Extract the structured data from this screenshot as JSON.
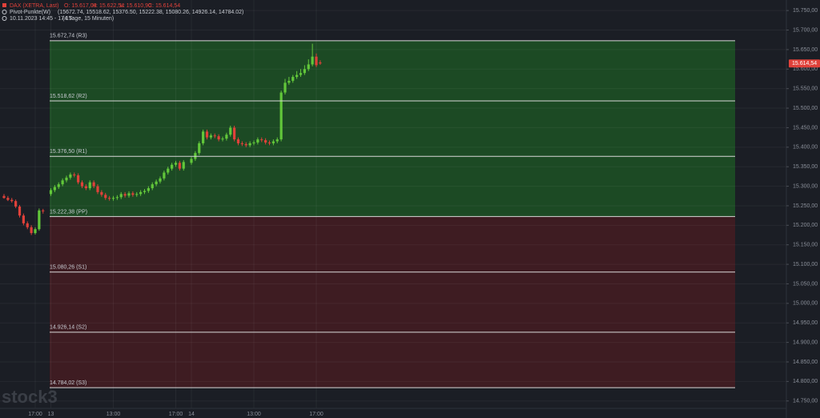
{
  "chart_data": {
    "type": "candlestick",
    "header": {
      "symbol": "DAX (XETRA, Last)",
      "ohlc": [
        "O: 15.617,08",
        "H: 15.622,54",
        "L: 15.610,90",
        "C: 15.614,54"
      ],
      "indicator": "Pivot-Punkte(W)",
      "indicator_values": "(15672.74, 15518.62, 15376.50, 15222.38, 15080.26, 14926.14, 14784.02)",
      "range": "10.11.2023 14:45 - 17:15",
      "period": "(4 Tage, 15 Minuten)"
    },
    "watermark": "stock3",
    "categories": [
      null,
      null,
      null,
      null,
      null,
      null,
      null,
      null,
      "17:00",
      null,
      null,
      null,
      "13",
      null,
      null,
      null,
      null,
      null,
      null,
      null,
      null,
      null,
      null,
      null,
      null,
      null,
      null,
      null,
      "13:00",
      null,
      null,
      null,
      null,
      null,
      null,
      null,
      null,
      null,
      null,
      null,
      null,
      null,
      null,
      null,
      "17:00",
      null,
      null,
      null,
      "14",
      null,
      null,
      null,
      null,
      null,
      null,
      null,
      null,
      null,
      null,
      null,
      null,
      null,
      null,
      null,
      "13:00",
      null,
      null,
      null,
      null,
      null,
      null,
      null,
      null,
      null,
      null,
      null,
      null,
      null,
      null,
      null,
      "17:00",
      null
    ],
    "open": [
      15275,
      15270,
      15265,
      15262,
      15248,
      15225,
      15205,
      15195,
      15180,
      15190,
      15238,
      null,
      15280,
      15290,
      15298,
      15305,
      15315,
      15322,
      15330,
      15328,
      15310,
      15300,
      15295,
      15310,
      15300,
      15285,
      15278,
      15270,
      15268,
      15270,
      15272,
      15280,
      15276,
      15282,
      15278,
      15280,
      15285,
      15288,
      15295,
      15305,
      15312,
      15320,
      15335,
      15345,
      15355,
      15360,
      15345,
      null,
      15360,
      15370,
      15385,
      15410,
      15440,
      15425,
      15430,
      15428,
      15420,
      15422,
      15432,
      15450,
      15420,
      15410,
      15408,
      15405,
      15410,
      15412,
      15420,
      15418,
      15412,
      15410,
      15415,
      15420,
      15540,
      15565,
      15570,
      15580,
      15585,
      15590,
      15600,
      15612,
      15632,
      15617.08
    ],
    "high": [
      15280,
      15275,
      15270,
      15266,
      15252,
      15230,
      15210,
      15200,
      15195,
      15243,
      15242,
      null,
      15295,
      15303,
      15310,
      15320,
      15327,
      15335,
      15335,
      15333,
      15315,
      15305,
      15315,
      15315,
      15305,
      15290,
      15283,
      15275,
      15275,
      15277,
      15285,
      15285,
      15287,
      15287,
      15285,
      15290,
      15293,
      15300,
      15310,
      15317,
      15325,
      15340,
      15350,
      15360,
      15365,
      15365,
      15367,
      null,
      15375,
      15390,
      15415,
      15445,
      15445,
      15435,
      15435,
      15433,
      15427,
      15437,
      15455,
      15455,
      15425,
      15415,
      15413,
      15415,
      15417,
      15425,
      15425,
      15423,
      15417,
      15420,
      15425,
      15545,
      15575,
      15580,
      15585,
      15595,
      15600,
      15610,
      15625,
      15665,
      15640,
      15622.54
    ],
    "low": [
      15268,
      15262,
      15258,
      15244,
      15220,
      15200,
      15190,
      15175,
      15176,
      15186,
      15230,
      null,
      15275,
      15285,
      15293,
      15300,
      15310,
      15317,
      15323,
      15305,
      15295,
      15290,
      15290,
      15295,
      15280,
      15273,
      15265,
      15263,
      15263,
      15265,
      15267,
      15271,
      15271,
      15273,
      15273,
      15275,
      15280,
      15283,
      15290,
      15300,
      15307,
      15315,
      15330,
      15340,
      15350,
      15340,
      15340,
      null,
      15355,
      15365,
      15380,
      15405,
      15420,
      15420,
      15423,
      15415,
      15415,
      15417,
      15427,
      15415,
      15405,
      15403,
      15400,
      15400,
      15405,
      15407,
      15413,
      15407,
      15405,
      15405,
      15410,
      15415,
      15535,
      15560,
      15565,
      15575,
      15580,
      15585,
      15595,
      15607,
      15605,
      15610.9
    ],
    "close": [
      15270,
      15265,
      15262,
      15248,
      15225,
      15205,
      15195,
      15180,
      15190,
      15238,
      15236,
      null,
      15290,
      15298,
      15305,
      15315,
      15322,
      15330,
      15328,
      15310,
      15300,
      15295,
      15310,
      15300,
      15285,
      15278,
      15270,
      15268,
      15270,
      15272,
      15280,
      15276,
      15282,
      15278,
      15280,
      15285,
      15288,
      15295,
      15305,
      15312,
      15320,
      15335,
      15345,
      15355,
      15360,
      15345,
      15362,
      null,
      15370,
      15385,
      15410,
      15440,
      15425,
      15430,
      15428,
      15420,
      15422,
      15432,
      15450,
      15420,
      15410,
      15408,
      15405,
      15410,
      15412,
      15420,
      15418,
      15412,
      15410,
      15415,
      15420,
      15540,
      15565,
      15570,
      15580,
      15585,
      15590,
      15600,
      15612,
      15632,
      15610,
      15614.54
    ],
    "up_color": "#62c73a",
    "down_color": "#e0413a",
    "pivots": [
      {
        "value": 15672.74,
        "label": "15.672,74 (R3)"
      },
      {
        "value": 15518.62,
        "label": "15.518,62 (R2)"
      },
      {
        "value": 15376.5,
        "label": "15.376,50 (R1)"
      },
      {
        "value": 15222.38,
        "label": "15.222,38 (PP)"
      },
      {
        "value": 15080.26,
        "label": "15.080,26 (S1)"
      },
      {
        "value": 14926.14,
        "label": "14.926,14 (S2)"
      },
      {
        "value": 14784.02,
        "label": "14.784,02 (S3)"
      }
    ],
    "upper_zone_color": "#1c4a24",
    "lower_zone_color": "#3e1c22",
    "last_price": {
      "value": 15614.54,
      "label": "15.614,54"
    },
    "ylim": [
      14731,
      15777
    ],
    "yticks": [
      {
        "value": 15750,
        "label": "15.750,00"
      },
      {
        "value": 15700,
        "label": "15.700,00"
      },
      {
        "value": 15650,
        "label": "15.650,00"
      },
      {
        "value": 15600,
        "label": "15.600,00"
      },
      {
        "value": 15550,
        "label": "15.550,00"
      },
      {
        "value": 15500,
        "label": "15.500,00"
      },
      {
        "value": 15450,
        "label": "15.450,00"
      },
      {
        "value": 15400,
        "label": "15.400,00"
      },
      {
        "value": 15350,
        "label": "15.350,00"
      },
      {
        "value": 15300,
        "label": "15.300,00"
      },
      {
        "value": 15250,
        "label": "15.250,00"
      },
      {
        "value": 15200,
        "label": "15.200,00"
      },
      {
        "value": 15150,
        "label": "15.150,00"
      },
      {
        "value": 15100,
        "label": "15.100,00"
      },
      {
        "value": 15050,
        "label": "15.050,00"
      },
      {
        "value": 15000,
        "label": "15.000,00"
      },
      {
        "value": 14950,
        "label": "14.950,00"
      },
      {
        "value": 14900,
        "label": "14.900,00"
      },
      {
        "value": 14850,
        "label": "14.850,00"
      },
      {
        "value": 14800,
        "label": "14.800,00"
      },
      {
        "value": 14750,
        "label": "14.750,00"
      }
    ],
    "grid": true
  }
}
